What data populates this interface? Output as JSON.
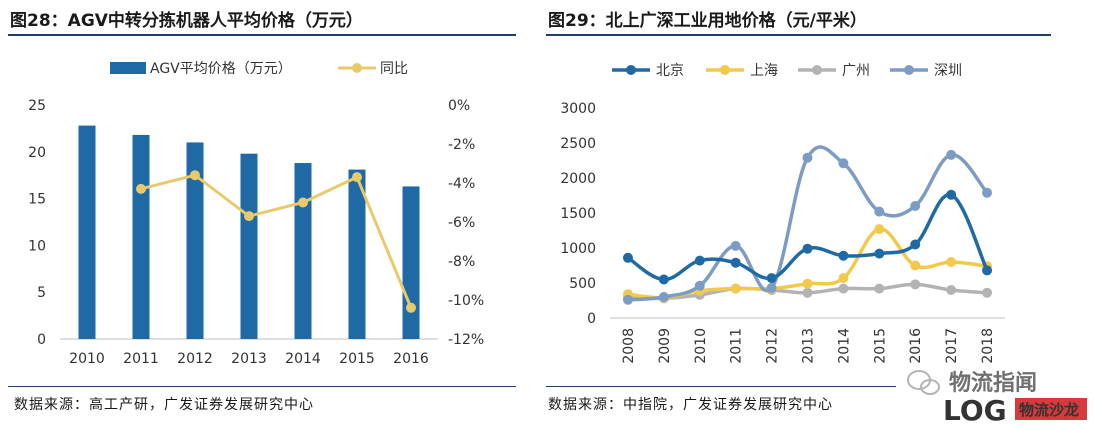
{
  "left": {
    "title": "图28：AGV中转分拣机器人平均价格（万元）",
    "source": "数据来源：高工产研，广发证券发展研究中心"
  },
  "right": {
    "title": "图29：北上广深工业用地价格（元/平米）",
    "source": "数据来源：中指院，广发证券发展研究中心"
  },
  "watermark": {
    "text": "物流指闻",
    "logo": "LOG",
    "badge": "物流沙龙"
  },
  "chart_data": [
    {
      "type": "bar",
      "categories": [
        "2010",
        "2011",
        "2012",
        "2013",
        "2014",
        "2015",
        "2016"
      ],
      "series": [
        {
          "name": "AGV平均价格（万元）",
          "kind": "bar",
          "axis": "left",
          "color": "#1f6aa5",
          "values": [
            22.8,
            21.8,
            21.0,
            19.8,
            18.8,
            18.1,
            16.3
          ]
        },
        {
          "name": "同比",
          "kind": "line",
          "axis": "right",
          "color": "#e8c96b",
          "values": [
            null,
            -4.3,
            -3.6,
            -5.7,
            -5.0,
            -3.7,
            -10.4
          ]
        }
      ],
      "left_ticks": [
        "0",
        "5",
        "10",
        "15",
        "20",
        "25"
      ],
      "right_ticks": [
        "0%",
        "-2%",
        "-4%",
        "-6%",
        "-8%",
        "-10%",
        "-12%"
      ],
      "ylim_left": [
        0,
        25
      ],
      "ylim_right": [
        -12,
        0
      ],
      "legend": "top-center"
    },
    {
      "type": "line",
      "categories": [
        "2008",
        "2009",
        "2010",
        "2011",
        "2012",
        "2013",
        "2014",
        "2015",
        "2016",
        "2017",
        "2018"
      ],
      "series": [
        {
          "name": "北京",
          "color": "#1f6aa5",
          "values": [
            860,
            550,
            820,
            790,
            570,
            990,
            890,
            920,
            1050,
            1760,
            680
          ]
        },
        {
          "name": "上海",
          "color": "#f2c94c",
          "values": [
            340,
            290,
            390,
            420,
            420,
            490,
            570,
            1270,
            750,
            800,
            740
          ]
        },
        {
          "name": "广州",
          "color": "#b3b3b3",
          "values": [
            300,
            280,
            330,
            420,
            400,
            360,
            420,
            420,
            480,
            400,
            360
          ]
        },
        {
          "name": "深圳",
          "color": "#7d9cc4",
          "values": [
            260,
            300,
            460,
            1030,
            430,
            2290,
            2210,
            1520,
            1600,
            2330,
            1790
          ]
        }
      ],
      "yticks": [
        "0",
        "500",
        "1000",
        "1500",
        "2000",
        "2500",
        "3000"
      ],
      "ylim": [
        0,
        3000
      ],
      "legend": "top-left"
    }
  ]
}
